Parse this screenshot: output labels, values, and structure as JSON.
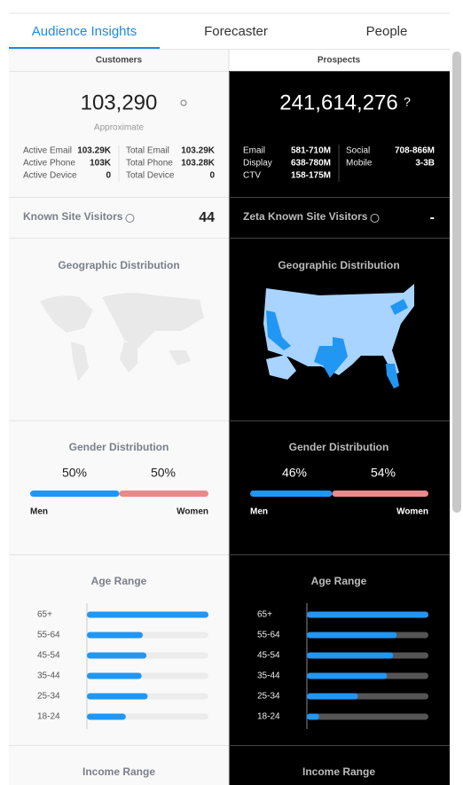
{
  "tabs": [
    "Audience Insights",
    "Forecaster",
    "People"
  ],
  "customers": {
    "header": "Customers",
    "count": "103,290",
    "note": "Approximate",
    "stats": [
      [
        "Active Email",
        "103.29K",
        "Total Email",
        "103.29K"
      ],
      [
        "Active Phone",
        "103K",
        "Total Phone",
        "103.28K"
      ],
      [
        "Active Device",
        "0",
        "Total Device",
        "0"
      ]
    ],
    "visitors_label": "Known Site Visitors",
    "visitors_value": "44",
    "geo_title": "Geographic Distribution",
    "gender": {
      "title": "Gender Distribution",
      "categories": [
        "Men",
        "Women"
      ],
      "values": [
        50,
        50
      ],
      "value_labels": [
        "50%",
        "50%"
      ]
    },
    "age": {
      "title": "Age Range",
      "categories": [
        "65+",
        "55-64",
        "45-54",
        "35-44",
        "25-34",
        "18-24"
      ],
      "values": [
        100,
        46,
        49,
        45,
        50,
        32
      ]
    },
    "income_title": "Income Range"
  },
  "prospects": {
    "header": "Prospects",
    "count": "241,614,276",
    "count_icon": "?",
    "stats": [
      [
        "Email",
        "581-710M",
        "Social",
        "708-866M"
      ],
      [
        "Display",
        "638-780M",
        "Mobile",
        "3-3B"
      ],
      [
        "CTV",
        "158-175M"
      ]
    ],
    "visitors_label": "Zeta Known Site Visitors",
    "visitors_value": "-",
    "geo_title": "Geographic Distribution",
    "gender": {
      "title": "Gender Distribution",
      "categories": [
        "Men",
        "Women"
      ],
      "values": [
        46,
        54
      ],
      "value_labels": [
        "46%",
        "54%"
      ]
    },
    "age": {
      "title": "Age Range",
      "categories": [
        "65+",
        "55-64",
        "45-54",
        "35-44",
        "25-34",
        "18-24"
      ],
      "values": [
        100,
        74,
        71,
        66,
        42,
        10
      ]
    },
    "income_title": "Income Range"
  }
}
